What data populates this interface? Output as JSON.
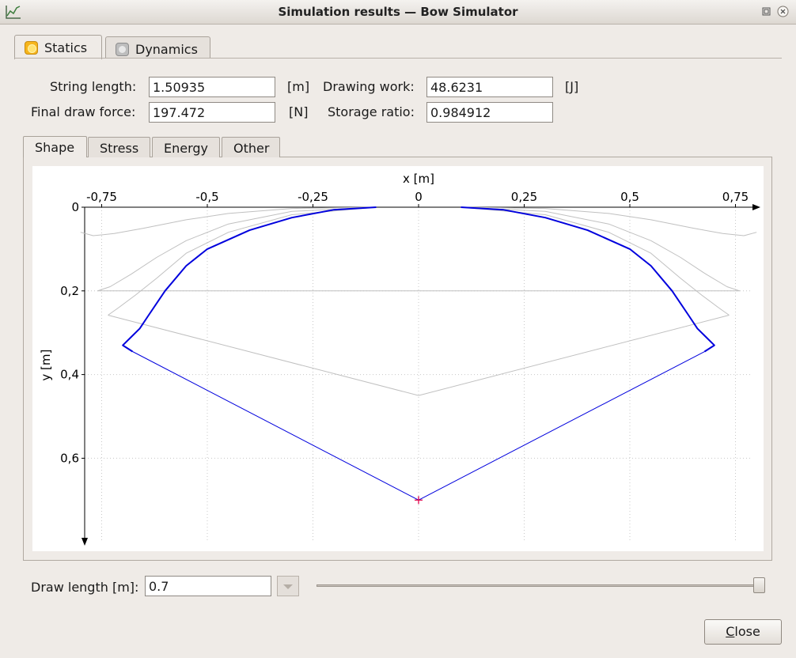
{
  "window": {
    "title": "Simulation results — Bow Simulator"
  },
  "tabs": [
    {
      "label": "Statics",
      "icon": "sun-icon",
      "color": "#f6b51c"
    },
    {
      "label": "Dynamics",
      "icon": "circle-icon",
      "color": "#b5b5b5"
    }
  ],
  "statics": {
    "string_length": {
      "label": "String length:",
      "value": "1.50935",
      "unit": "[m]"
    },
    "final_draw_force": {
      "label": "Final draw force:",
      "value": "197.472",
      "unit": "[N]"
    },
    "drawing_work": {
      "label": "Drawing work:",
      "value": "48.6231",
      "unit": "[J]"
    },
    "storage_ratio": {
      "label": "Storage ratio:",
      "value": "0.984912"
    }
  },
  "plot_tabs": [
    "Shape",
    "Stress",
    "Energy",
    "Other"
  ],
  "chart_data": {
    "type": "line",
    "xlabel": "x [m]",
    "ylabel": "y [m]",
    "xlim": [
      -0.8,
      0.8
    ],
    "ylim": [
      0,
      0.8
    ],
    "y_inverted": true,
    "x_ticks": [
      "-0,75",
      "-0,5",
      "-0,25",
      "0",
      "0,25",
      "0,5",
      "0,75"
    ],
    "x_tick_values": [
      -0.75,
      -0.5,
      -0.25,
      0,
      0.25,
      0.5,
      0.75
    ],
    "y_ticks": [
      "0",
      "0,2",
      "0,4",
      "0,6"
    ],
    "y_tick_values": [
      0,
      0.2,
      0.4,
      0.6
    ],
    "grid": true,
    "colors": {
      "current": "#0000dd",
      "previous": "#c0c0c0",
      "arrow_mark": "#e0004a"
    },
    "series": [
      {
        "limb_right": [
          [
            0.1,
            0.0
          ],
          [
            0.2,
            0.006
          ],
          [
            0.3,
            0.025
          ],
          [
            0.4,
            0.055
          ],
          [
            0.5,
            0.1
          ],
          [
            0.55,
            0.14
          ],
          [
            0.6,
            0.2
          ],
          [
            0.64,
            0.26
          ],
          [
            0.66,
            0.29
          ],
          [
            0.68,
            0.31
          ],
          [
            0.7,
            0.33
          ],
          [
            0.677,
            0.345
          ]
        ],
        "string": [
          [
            0.677,
            0.345
          ],
          [
            0.0,
            0.7
          ],
          [
            -0.677,
            0.345
          ]
        ]
      },
      {
        "limb_right": [
          [
            0.1,
            0.0
          ],
          [
            0.3,
            0.018
          ],
          [
            0.45,
            0.06
          ],
          [
            0.55,
            0.11
          ],
          [
            0.62,
            0.17
          ],
          [
            0.67,
            0.21
          ],
          [
            0.71,
            0.24
          ],
          [
            0.735,
            0.258
          ]
        ],
        "string": [
          [
            0.735,
            0.258
          ],
          [
            0.0,
            0.45
          ],
          [
            -0.735,
            0.258
          ]
        ]
      },
      {
        "limb_right": [
          [
            0.1,
            0.0
          ],
          [
            0.3,
            0.01
          ],
          [
            0.45,
            0.04
          ],
          [
            0.55,
            0.08
          ],
          [
            0.62,
            0.12
          ],
          [
            0.68,
            0.16
          ],
          [
            0.73,
            0.19
          ],
          [
            0.76,
            0.2
          ]
        ],
        "string": [
          [
            0.76,
            0.2
          ],
          [
            -0.76,
            0.2
          ]
        ]
      },
      {
        "limb_right": [
          [
            0.1,
            0.0
          ],
          [
            0.3,
            0.003
          ],
          [
            0.45,
            0.015
          ],
          [
            0.55,
            0.03
          ],
          [
            0.65,
            0.05
          ],
          [
            0.72,
            0.063
          ],
          [
            0.77,
            0.068
          ],
          [
            0.8,
            0.06
          ]
        ],
        "string": []
      }
    ],
    "arrow_point": [
      0.0,
      0.7
    ]
  },
  "bottom": {
    "draw_length_label": "Draw length [m]:",
    "draw_length_value": "0.7",
    "slider_fraction": 1.0,
    "close_label_first": "C",
    "close_label_rest": "lose"
  }
}
